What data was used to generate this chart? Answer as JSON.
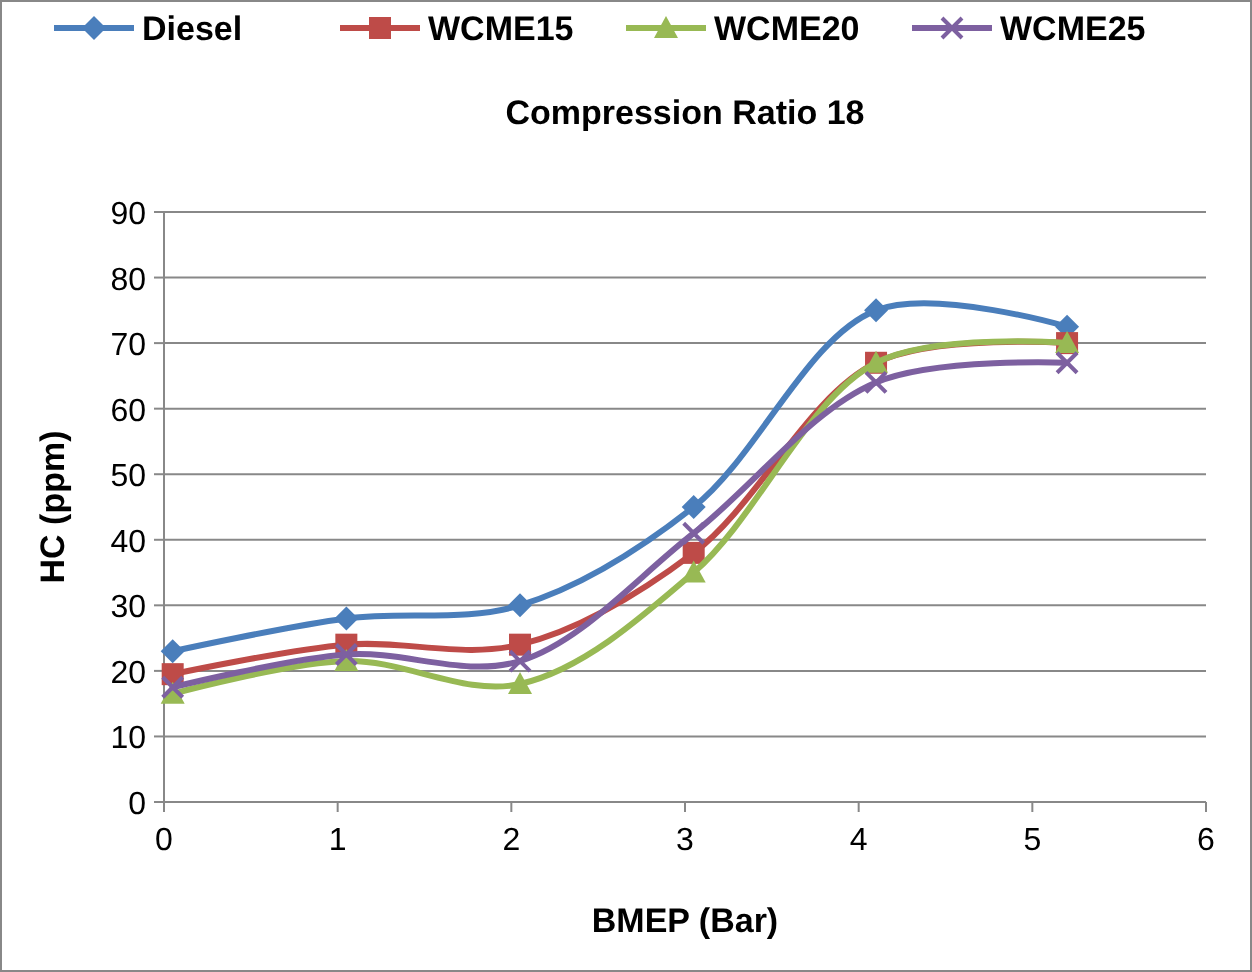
{
  "chart_data": {
    "type": "line",
    "title": "Compression Ratio 18",
    "xlabel": "BMEP (Bar)",
    "ylabel": "HC (ppm)",
    "x": [
      0.05,
      1.05,
      2.05,
      3.05,
      4.1,
      5.2
    ],
    "series": [
      {
        "name": "Diesel",
        "color": "#4a7ebb",
        "marker": "diamond",
        "values": [
          23,
          28,
          30,
          45,
          75,
          72.5
        ]
      },
      {
        "name": "WCME15",
        "color": "#be4b48",
        "marker": "square",
        "values": [
          19.5,
          24,
          24,
          38,
          67,
          70
        ]
      },
      {
        "name": "WCME20",
        "color": "#98b954",
        "marker": "triangle",
        "values": [
          16.5,
          21.5,
          18,
          35,
          67,
          70
        ]
      },
      {
        "name": "WCME25",
        "color": "#7d60a0",
        "marker": "cross",
        "values": [
          17.5,
          22.5,
          21.5,
          41,
          64,
          67
        ]
      }
    ],
    "xlim": [
      0,
      6
    ],
    "xticks": [
      0,
      1,
      2,
      3,
      4,
      5,
      6
    ],
    "ylim": [
      0,
      90
    ],
    "yticks": [
      0,
      10,
      20,
      30,
      40,
      50,
      60,
      70,
      80,
      90
    ],
    "grid": "y",
    "legend": "top"
  }
}
